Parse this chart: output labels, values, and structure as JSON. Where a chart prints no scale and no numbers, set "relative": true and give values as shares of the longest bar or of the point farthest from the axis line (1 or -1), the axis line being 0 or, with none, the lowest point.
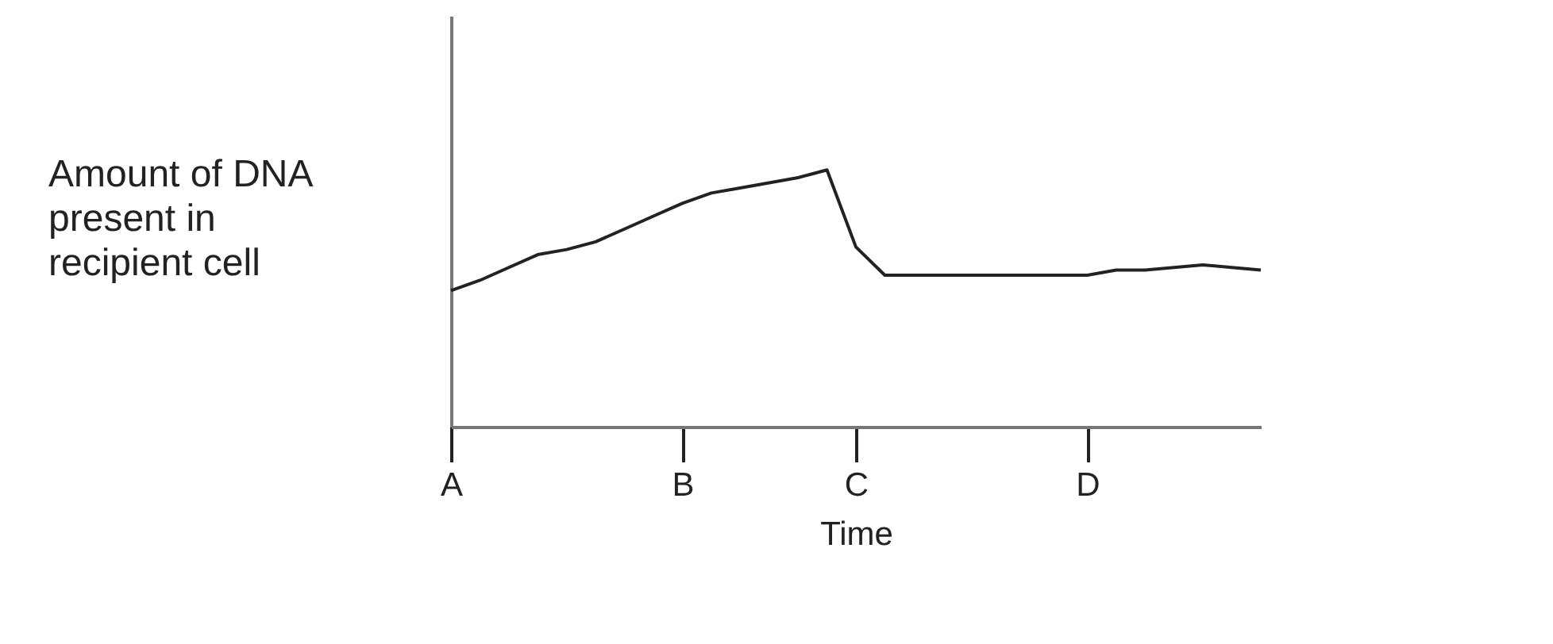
{
  "chart_data": {
    "type": "line",
    "relative": true,
    "xlabel": "Time",
    "ylabel": "Amount of DNA present in recipient cell",
    "grid": false,
    "marker": "none",
    "line_style": "solid",
    "categories": [
      "A",
      null,
      null,
      null,
      null,
      null,
      null,
      null,
      "B",
      null,
      null,
      null,
      null,
      null,
      "C",
      null,
      null,
      null,
      null,
      null,
      null,
      null,
      "D",
      null,
      null,
      null,
      null,
      null,
      null
    ],
    "series": [
      {
        "color": "#222222",
        "values": [
          0.53,
          0.57,
          0.62,
          0.67,
          0.69,
          0.72,
          0.77,
          0.82,
          0.87,
          0.91,
          0.93,
          0.95,
          0.97,
          1.0,
          0.7,
          0.59,
          0.59,
          0.59,
          0.59,
          0.59,
          0.59,
          0.59,
          0.59,
          0.61,
          0.61,
          0.62,
          0.63,
          0.62,
          0.61
        ]
      }
    ]
  }
}
